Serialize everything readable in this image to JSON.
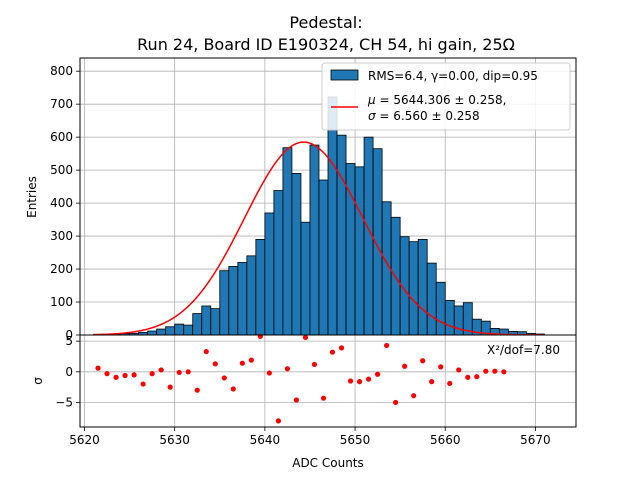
{
  "chart_data": [
    {
      "type": "bar",
      "title_line1": "Pedestal:",
      "title_line2": "Run 24, Board ID E190324, CH 54, hi gain, 25Ω",
      "ylabel": "Entries",
      "xlim": [
        5619.5,
        5674.5
      ],
      "ylim": [
        0,
        840
      ],
      "yticks": [
        0,
        100,
        200,
        300,
        400,
        500,
        600,
        700,
        800
      ],
      "bin_edges_start": 5621,
      "bin_width": 1,
      "values": [
        2,
        2,
        3,
        4,
        5,
        8,
        12,
        18,
        25,
        33,
        30,
        65,
        88,
        80,
        195,
        208,
        220,
        240,
        290,
        370,
        438,
        568,
        490,
        342,
        576,
        470,
        722,
        606,
        520,
        510,
        600,
        565,
        404,
        357,
        298,
        283,
        290,
        218,
        160,
        105,
        88,
        98,
        48,
        42,
        20,
        18,
        11,
        10,
        5,
        3
      ],
      "fit": {
        "mu": 5644.306,
        "sigma": 6.56,
        "amplitude": 585,
        "color": "#ff0000"
      },
      "bar_color": "#1f77b4",
      "legend": {
        "hist_label": "RMS=6.4, γ=0.00, dip=0.95",
        "fit_mu_text": " = 5644.306 ± 0.258,",
        "fit_sigma_text": " = 6.560 ± 0.258",
        "mu_symbol": "μ",
        "sigma_symbol": "σ",
        "placement": "top-right"
      },
      "grid": true
    },
    {
      "type": "scatter",
      "xlabel": "ADC Counts",
      "ylabel": "σ",
      "xlim": [
        5619.5,
        5674.5
      ],
      "ylim": [
        -9,
        6
      ],
      "yticks": [
        -5,
        0,
        5
      ],
      "xticks": [
        5620,
        5630,
        5640,
        5650,
        5660,
        5670
      ],
      "annotation": "X²/dof=7.80",
      "point_color": "#ff0000",
      "points": [
        {
          "x": 5621.5,
          "y": 0.6
        },
        {
          "x": 5622.5,
          "y": -0.3
        },
        {
          "x": 5623.5,
          "y": -0.9
        },
        {
          "x": 5624.5,
          "y": -0.6
        },
        {
          "x": 5625.5,
          "y": -0.5
        },
        {
          "x": 5626.5,
          "y": -2.0
        },
        {
          "x": 5627.5,
          "y": -0.3
        },
        {
          "x": 5628.5,
          "y": 0.3
        },
        {
          "x": 5629.5,
          "y": -2.5
        },
        {
          "x": 5630.5,
          "y": -0.1
        },
        {
          "x": 5631.5,
          "y": 0.0
        },
        {
          "x": 5632.5,
          "y": -3.0
        },
        {
          "x": 5633.5,
          "y": 3.3
        },
        {
          "x": 5634.5,
          "y": 1.3
        },
        {
          "x": 5635.5,
          "y": -1.0
        },
        {
          "x": 5636.5,
          "y": -2.8
        },
        {
          "x": 5637.5,
          "y": 1.4
        },
        {
          "x": 5638.5,
          "y": 1.9
        },
        {
          "x": 5639.5,
          "y": 5.8
        },
        {
          "x": 5640.5,
          "y": -0.2
        },
        {
          "x": 5641.5,
          "y": -8.0
        },
        {
          "x": 5642.5,
          "y": 0.5
        },
        {
          "x": 5643.5,
          "y": -4.6
        },
        {
          "x": 5644.5,
          "y": 5.6
        },
        {
          "x": 5645.5,
          "y": 1.2
        },
        {
          "x": 5646.5,
          "y": -4.3
        },
        {
          "x": 5647.5,
          "y": 3.2
        },
        {
          "x": 5648.5,
          "y": 3.9
        },
        {
          "x": 5649.5,
          "y": -1.5
        },
        {
          "x": 5650.5,
          "y": -1.6
        },
        {
          "x": 5651.5,
          "y": -1.2
        },
        {
          "x": 5652.5,
          "y": -0.4
        },
        {
          "x": 5653.5,
          "y": 4.3
        },
        {
          "x": 5654.5,
          "y": -5.0
        },
        {
          "x": 5655.5,
          "y": 0.9
        },
        {
          "x": 5656.5,
          "y": -3.9
        },
        {
          "x": 5657.5,
          "y": 1.8
        },
        {
          "x": 5658.5,
          "y": -1.6
        },
        {
          "x": 5659.5,
          "y": 0.8
        },
        {
          "x": 5660.5,
          "y": -1.9
        },
        {
          "x": 5661.5,
          "y": 0.3
        },
        {
          "x": 5662.5,
          "y": -0.9
        },
        {
          "x": 5663.5,
          "y": -0.8
        },
        {
          "x": 5664.5,
          "y": 0.1
        },
        {
          "x": 5665.5,
          "y": 0.1
        },
        {
          "x": 5666.5,
          "y": 0.0
        }
      ],
      "grid": true
    }
  ]
}
